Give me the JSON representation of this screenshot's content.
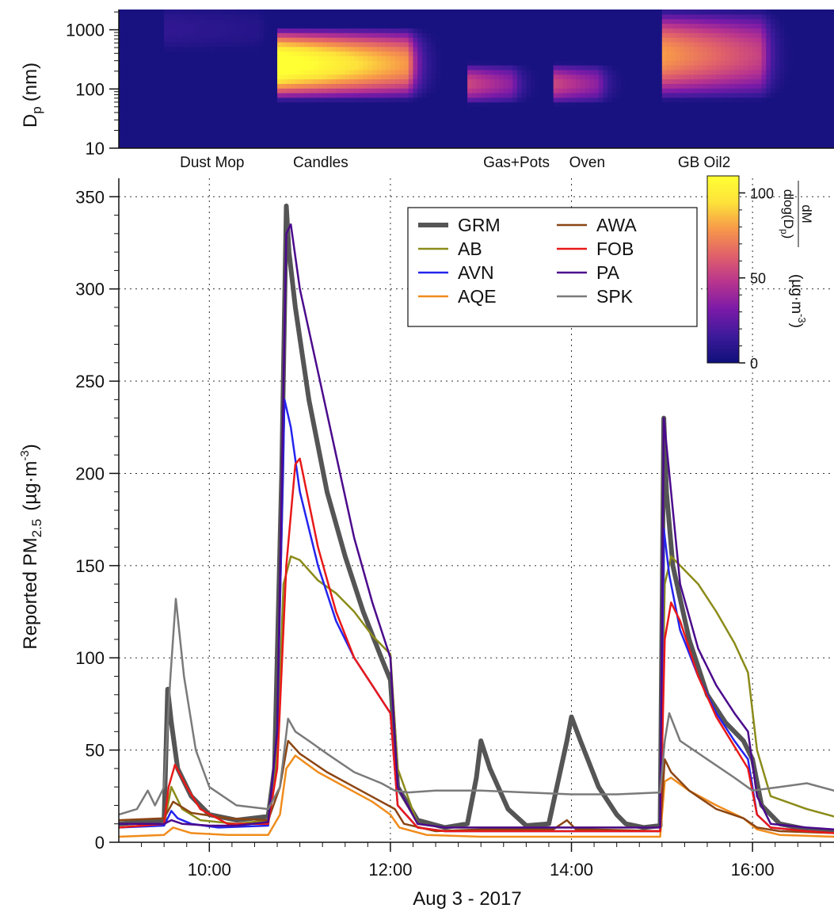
{
  "chart_data": [
    {
      "type": "heatmap",
      "ylabel": "D",
      "ylabel_sub": "p",
      "ylabel_unit": "(nm)",
      "yscale": "log",
      "ylim": [
        10,
        2200
      ],
      "yticks": [
        "10",
        "100",
        "1000"
      ],
      "xlim_hours": [
        9.0,
        16.9
      ],
      "colorbar": {
        "label_num": "dM",
        "label_den": "dlog(D",
        "label_den_sub": "p",
        "label_den_end": ")",
        "unit": "(µg·m",
        "unit_sup": "-3",
        "unit_end": ")",
        "range": [
          0,
          110
        ],
        "ticks": [
          "0",
          "50",
          "100"
        ],
        "colors": [
          "#10107a",
          "#3c1a9a",
          "#7a1aa8",
          "#b7338f",
          "#e0606a",
          "#f7974a",
          "#fde23a",
          "#ffff33"
        ]
      },
      "events": [
        {
          "name": "Dust Mop",
          "start": 9.5,
          "end": 10.55,
          "mode_lo": 500,
          "mode_hi": 2200,
          "peak": 12
        },
        {
          "name": "Candles",
          "start": 10.75,
          "end": 12.2,
          "mode_lo": 80,
          "mode_hi": 900,
          "peak": 120
        },
        {
          "name": "Gas+Pots",
          "start": 12.85,
          "end": 13.35,
          "mode_lo": 70,
          "mode_hi": 220,
          "peak": 55
        },
        {
          "name": "Oven",
          "start": 13.8,
          "end": 14.3,
          "mode_lo": 70,
          "mode_hi": 220,
          "peak": 55
        },
        {
          "name": "GB Oil2",
          "start": 15.0,
          "end": 16.1,
          "mode_lo": 80,
          "mode_hi": 1800,
          "peak": 80
        }
      ]
    },
    {
      "type": "line",
      "xlabel": "Aug 3 - 2017",
      "ylabel": "Reported PM",
      "ylabel_sub": "2.5",
      "ylabel_unit": "(µg·m",
      "ylabel_sup": "-3",
      "ylabel_end": ")",
      "xlim_hours": [
        9.0,
        16.9
      ],
      "ylim": [
        0,
        360
      ],
      "xticks": [
        {
          "h": 10,
          "label": "10:00"
        },
        {
          "h": 12,
          "label": "12:00"
        },
        {
          "h": 14,
          "label": "14:00"
        },
        {
          "h": 16,
          "label": "16:00"
        }
      ],
      "yticks": [
        0,
        50,
        100,
        150,
        200,
        250,
        300,
        350
      ],
      "grid": true,
      "legend_position": "top-right",
      "series": [
        {
          "name": "GRM",
          "color": "#555555",
          "width": 6,
          "x": [
            9.0,
            9.5,
            9.54,
            9.58,
            9.65,
            9.8,
            10.0,
            10.3,
            10.65,
            10.72,
            10.8,
            10.85,
            10.88,
            10.95,
            11.1,
            11.3,
            11.5,
            11.7,
            11.9,
            12.0,
            12.08,
            12.3,
            12.6,
            12.85,
            12.95,
            13.0,
            13.1,
            13.3,
            13.5,
            13.75,
            13.95,
            14.0,
            14.1,
            14.3,
            14.5,
            14.6,
            14.8,
            14.98,
            15.02,
            15.05,
            15.12,
            15.3,
            15.5,
            15.7,
            15.9,
            16.0,
            16.1,
            16.3,
            16.6,
            16.9
          ],
          "y": [
            10,
            12,
            83,
            65,
            40,
            25,
            15,
            12,
            14,
            40,
            200,
            345,
            320,
            290,
            240,
            190,
            155,
            125,
            100,
            88,
            30,
            12,
            8,
            10,
            35,
            55,
            40,
            18,
            9,
            10,
            55,
            68,
            55,
            30,
            15,
            10,
            8,
            9,
            230,
            190,
            150,
            110,
            80,
            65,
            55,
            45,
            20,
            10,
            7,
            6
          ]
        },
        {
          "name": "AB",
          "color": "#8b8b1a",
          "width": 2.5,
          "x": [
            9.0,
            9.5,
            9.58,
            9.7,
            9.9,
            10.3,
            10.65,
            10.75,
            10.82,
            10.9,
            11.0,
            11.2,
            11.4,
            11.6,
            11.8,
            12.0,
            12.08,
            12.3,
            12.6,
            13.0,
            13.5,
            14.0,
            14.5,
            14.98,
            15.03,
            15.1,
            15.2,
            15.4,
            15.6,
            15.8,
            15.95,
            16.05,
            16.2,
            16.6,
            16.9
          ],
          "y": [
            8,
            10,
            30,
            18,
            12,
            10,
            12,
            50,
            140,
            155,
            153,
            142,
            135,
            125,
            112,
            102,
            40,
            10,
            8,
            8,
            8,
            8,
            8,
            8,
            140,
            155,
            150,
            140,
            125,
            108,
            92,
            50,
            25,
            18,
            14
          ]
        },
        {
          "name": "AVN",
          "color": "#2424ee",
          "width": 2.5,
          "x": [
            9.0,
            9.5,
            9.58,
            9.65,
            9.8,
            10.1,
            10.65,
            10.75,
            10.83,
            10.9,
            11.0,
            11.2,
            11.4,
            11.6,
            11.8,
            12.0,
            12.08,
            12.3,
            12.6,
            13.0,
            13.5,
            14.0,
            14.5,
            14.98,
            15.02,
            15.08,
            15.2,
            15.4,
            15.6,
            15.8,
            15.95,
            16.05,
            16.2,
            16.6,
            16.9
          ],
          "y": [
            8,
            9,
            17,
            13,
            10,
            8,
            9,
            60,
            240,
            225,
            190,
            150,
            120,
            100,
            85,
            70,
            20,
            8,
            6,
            6,
            6,
            6,
            6,
            6,
            170,
            145,
            115,
            90,
            70,
            55,
            45,
            15,
            8,
            6,
            5
          ]
        },
        {
          "name": "AQE",
          "color": "#f08c1c",
          "width": 2.5,
          "x": [
            9.0,
            9.5,
            9.6,
            9.8,
            10.2,
            10.65,
            10.78,
            10.85,
            10.95,
            11.2,
            11.5,
            11.8,
            12.0,
            12.1,
            12.4,
            13.0,
            14.0,
            14.98,
            15.03,
            15.1,
            15.3,
            15.6,
            15.9,
            16.05,
            16.3,
            16.9
          ],
          "y": [
            3,
            4,
            8,
            5,
            4,
            4,
            15,
            40,
            47,
            38,
            30,
            22,
            15,
            8,
            4,
            3,
            3,
            3,
            33,
            35,
            28,
            20,
            13,
            7,
            4,
            3
          ]
        },
        {
          "name": "AWA",
          "color": "#8b4513",
          "width": 2.5,
          "x": [
            9.0,
            9.5,
            9.6,
            9.8,
            10.2,
            10.65,
            10.78,
            10.87,
            11.0,
            11.3,
            11.6,
            11.9,
            12.05,
            12.15,
            12.5,
            13.0,
            13.8,
            13.95,
            14.05,
            14.2,
            14.98,
            15.03,
            15.1,
            15.3,
            15.6,
            15.9,
            16.05,
            16.3,
            16.9
          ],
          "y": [
            12,
            13,
            22,
            16,
            13,
            12,
            30,
            55,
            48,
            38,
            30,
            22,
            18,
            10,
            6,
            7,
            7,
            12,
            7,
            7,
            6,
            45,
            38,
            28,
            18,
            13,
            8,
            6,
            5
          ]
        },
        {
          "name": "FOB",
          "color": "#e81919",
          "width": 2.5,
          "x": [
            9.0,
            9.5,
            9.55,
            9.62,
            9.75,
            9.9,
            10.2,
            10.65,
            10.75,
            10.85,
            10.95,
            11.0,
            11.2,
            11.4,
            11.6,
            11.8,
            12.0,
            12.08,
            12.3,
            12.6,
            13.0,
            13.5,
            14.0,
            14.5,
            14.98,
            15.03,
            15.1,
            15.2,
            15.4,
            15.6,
            15.8,
            15.95,
            16.05,
            16.2,
            16.6,
            16.9
          ],
          "y": [
            8,
            10,
            30,
            42,
            30,
            18,
            10,
            10,
            40,
            150,
            205,
            208,
            160,
            125,
            100,
            85,
            70,
            20,
            8,
            6,
            6,
            6,
            6,
            6,
            6,
            110,
            130,
            120,
            90,
            68,
            52,
            40,
            15,
            8,
            6,
            5
          ]
        },
        {
          "name": "PA",
          "color": "#4b0a8c",
          "width": 2.5,
          "x": [
            9.0,
            9.5,
            9.58,
            9.7,
            10.0,
            10.3,
            10.65,
            10.75,
            10.85,
            10.9,
            11.0,
            11.2,
            11.4,
            11.6,
            11.8,
            12.0,
            12.08,
            12.3,
            12.6,
            13.0,
            13.5,
            14.0,
            14.5,
            14.98,
            15.02,
            15.08,
            15.2,
            15.4,
            15.6,
            15.8,
            15.95,
            16.05,
            16.2,
            16.6,
            16.9
          ],
          "y": [
            10,
            10,
            12,
            10,
            9,
            9,
            11,
            60,
            330,
            335,
            300,
            255,
            210,
            165,
            130,
            100,
            30,
            10,
            8,
            8,
            8,
            8,
            8,
            8,
            230,
            200,
            140,
            105,
            85,
            70,
            60,
            25,
            10,
            8,
            7
          ]
        },
        {
          "name": "SPK",
          "color": "#7a7a7a",
          "width": 2.5,
          "x": [
            9.0,
            9.2,
            9.32,
            9.4,
            9.5,
            9.57,
            9.63,
            9.72,
            9.85,
            10.0,
            10.3,
            10.65,
            10.78,
            10.87,
            10.95,
            11.1,
            11.3,
            11.6,
            11.9,
            12.05,
            12.2,
            12.5,
            13.0,
            13.5,
            14.0,
            14.5,
            14.98,
            15.03,
            15.08,
            15.2,
            15.5,
            15.8,
            16.0,
            16.3,
            16.6,
            16.9
          ],
          "y": [
            15,
            18,
            28,
            20,
            30,
            90,
            132,
            90,
            50,
            30,
            20,
            18,
            30,
            67,
            60,
            55,
            48,
            38,
            32,
            28,
            27,
            28,
            28,
            27,
            26,
            26,
            27,
            55,
            70,
            55,
            45,
            35,
            28,
            30,
            32,
            28
          ]
        }
      ]
    }
  ]
}
